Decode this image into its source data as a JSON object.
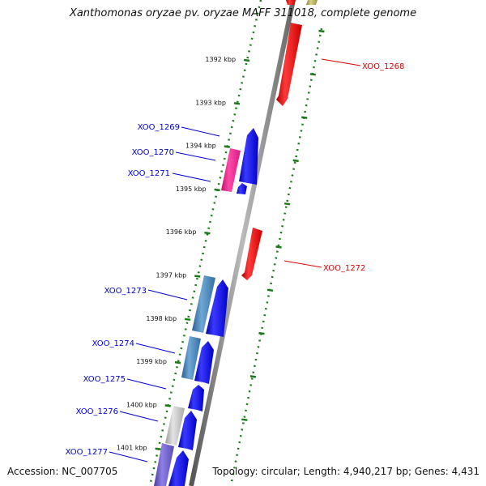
{
  "title": "Xanthomonas oryzae pv. oryzae MAFF 311018, complete genome",
  "accession": "Accession: NC_007705",
  "topology": "Topology: circular; Length: 4,940,217 bp; Genes: 4,431",
  "colors": {
    "plus_strand_gene": "#0000ee",
    "minus_strand_gene": "#ee0000",
    "tick": "#1a7a1a",
    "backbone": "#888888",
    "label_plus": "#0000cc",
    "label_minus": "#dd0000"
  },
  "scale": {
    "ticks": [
      "1392 kbp",
      "1393 kbp",
      "1394 kbp",
      "1395 kbp",
      "1396 kbp",
      "1397 kbp",
      "1398 kbp",
      "1399 kbp",
      "1400 kbp",
      "1401 kbp"
    ]
  },
  "genes": [
    {
      "label": "XOO_1268",
      "strand": "minus"
    },
    {
      "label": "XOO_1269",
      "strand": "plus"
    },
    {
      "label": "XOO_1270",
      "strand": "plus"
    },
    {
      "label": "XOO_1271",
      "strand": "plus"
    },
    {
      "label": "XOO_1272",
      "strand": "minus"
    },
    {
      "label": "XOO_1273",
      "strand": "plus"
    },
    {
      "label": "XOO_1274",
      "strand": "plus"
    },
    {
      "label": "XOO_1275",
      "strand": "plus"
    },
    {
      "label": "XOO_1276",
      "strand": "plus"
    },
    {
      "label": "XOO_1277",
      "strand": "plus"
    }
  ]
}
